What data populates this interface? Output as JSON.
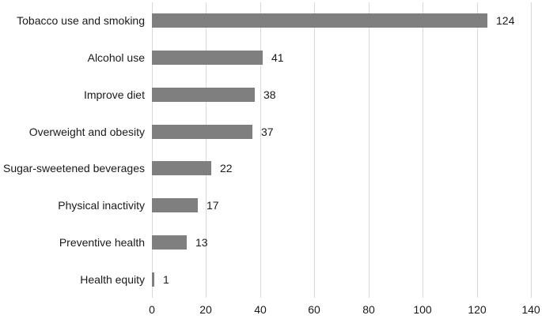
{
  "chart_data": {
    "type": "bar",
    "orientation": "horizontal",
    "title": "",
    "xlabel": "",
    "ylabel": "",
    "categories": [
      "Tobacco use and smoking",
      "Alcohol use",
      "Improve diet",
      "Overweight and obesity",
      "Sugar-sweetened beverages",
      "Physical inactivity",
      "Preventive health",
      "Health equity"
    ],
    "values": [
      124,
      41,
      38,
      37,
      22,
      17,
      13,
      1
    ],
    "data_labels": [
      "124",
      "41",
      "38",
      "37",
      "22",
      "17",
      "13",
      "1"
    ],
    "xlim": [
      0,
      140
    ],
    "x_ticks": [
      "0",
      "20",
      "40",
      "60",
      "80",
      "100",
      "120",
      "140"
    ],
    "grid": "vertical-only",
    "legend": "none",
    "colors": {
      "bar": "#7f7f7f",
      "gridline": "#d9d9d9",
      "text": "#1a1a1a",
      "background": "#ffffff"
    }
  }
}
